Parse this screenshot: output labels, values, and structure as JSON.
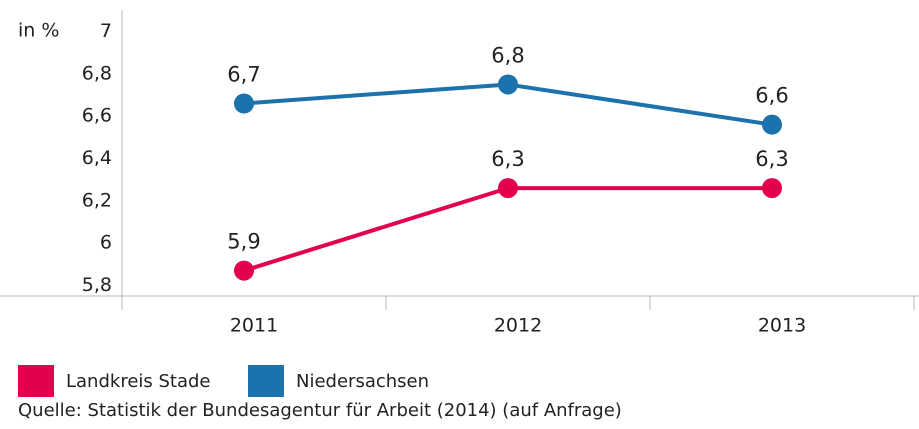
{
  "chart_data": {
    "type": "line",
    "y_label": "in %",
    "categories": [
      "2011",
      "2012",
      "2013"
    ],
    "series": [
      {
        "name": "Landkreis Stade",
        "color": "#e2004f",
        "values": [
          5.87,
          6.26,
          6.26
        ],
        "value_labels": [
          "5,9",
          "6,3",
          "6,3"
        ]
      },
      {
        "name": "Niedersachsen",
        "color": "#1b72ad",
        "values": [
          6.66,
          6.75,
          6.56
        ],
        "value_labels": [
          "6,7",
          "6,8",
          "6,6"
        ]
      }
    ],
    "ylim": [
      5.75,
      7.05
    ],
    "yticks": [
      {
        "value": 5.8,
        "label": "5,8"
      },
      6,
      {
        "value": 6.2,
        "label": "6,2"
      },
      {
        "value": 6.4,
        "label": "6,4"
      },
      {
        "value": 6.6,
        "label": "6,6"
      },
      {
        "value": 6.8,
        "label": "6,8"
      },
      7
    ],
    "source": "Quelle: Statistik der Bundesagentur für Arbeit (2014) (auf Anfrage)"
  }
}
